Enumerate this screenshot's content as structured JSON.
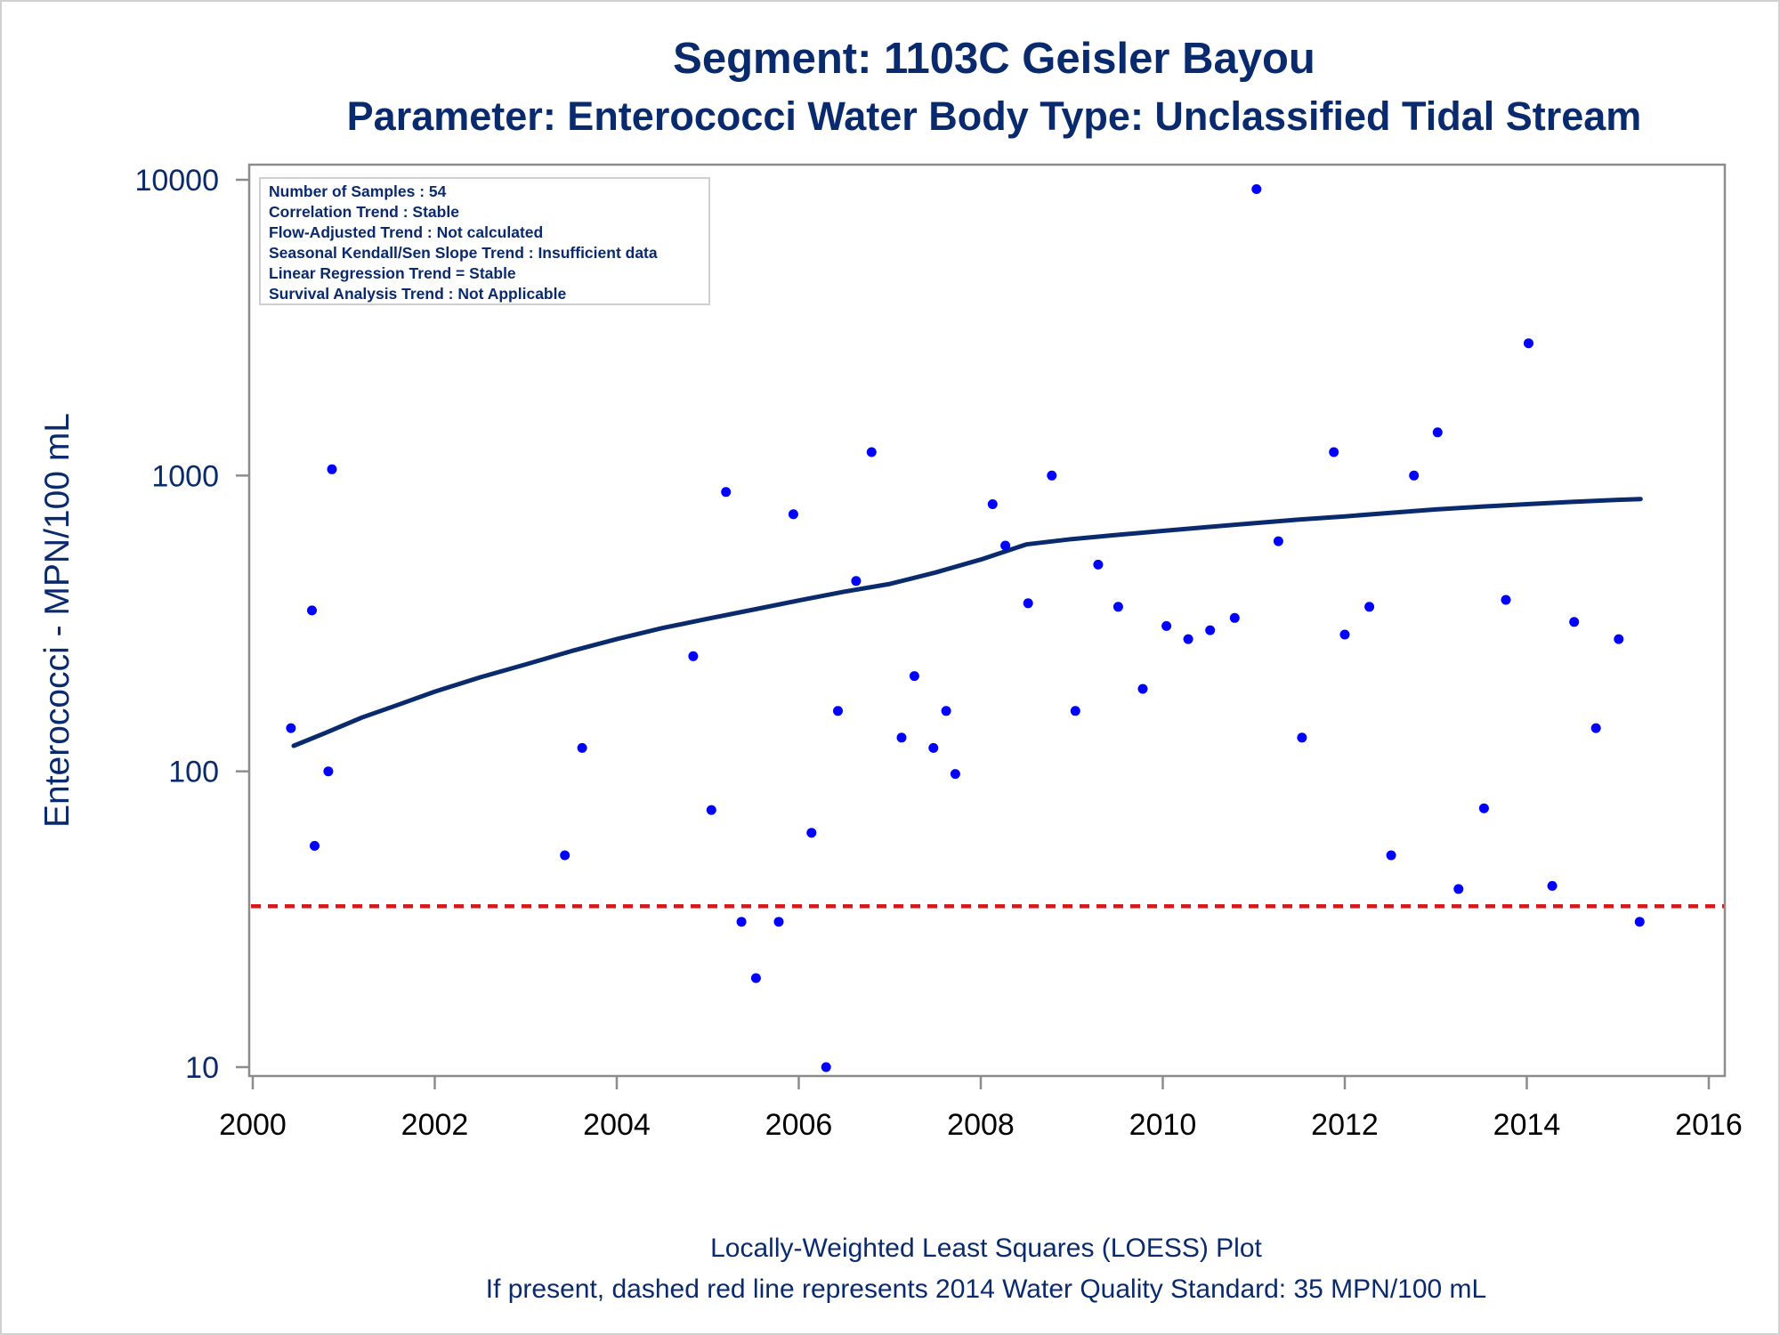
{
  "chart_data": {
    "type": "scatter",
    "title": "Segment: 1103C  Geisler Bayou",
    "subtitle": "Parameter: Enterococci   Water Body Type: Unclassified Tidal Stream",
    "ylabel": "Enterococci - MPN/100 mL",
    "xlabel": "",
    "yscale": "log",
    "ylim": [
      10,
      10000
    ],
    "xlim": [
      2000,
      2016
    ],
    "xticks": [
      "2000",
      "2002",
      "2004",
      "2006",
      "2008",
      "2010",
      "2012",
      "2014",
      "2016"
    ],
    "yticks": [
      "10",
      "100",
      "1000",
      "10000"
    ],
    "grid": false,
    "info_box": [
      "Number of Samples : 54",
      "Correlation Trend : Stable",
      "Flow-Adjusted Trend : Not calculated",
      "Seasonal Kendall/Sen Slope Trend : Insufficient data",
      "Linear Regression Trend = Stable",
      "Survival Analysis Trend : Not Applicable"
    ],
    "footnotes": [
      "Locally-Weighted Least Squares (LOESS) Plot",
      "If present, dashed red line represents 2014 Water Quality Standard: 35 MPN/100 mL"
    ],
    "standard_line": {
      "y": 35,
      "color": "#d7191c",
      "style": "dashed"
    },
    "points_color": "#0000ff",
    "loess_color": "#0a2a6e",
    "points": [
      {
        "x": 2000.42,
        "y": 140
      },
      {
        "x": 2000.65,
        "y": 350
      },
      {
        "x": 2000.68,
        "y": 56
      },
      {
        "x": 2000.83,
        "y": 100
      },
      {
        "x": 2000.87,
        "y": 1050
      },
      {
        "x": 2003.43,
        "y": 52
      },
      {
        "x": 2003.62,
        "y": 120
      },
      {
        "x": 2004.84,
        "y": 245
      },
      {
        "x": 2005.04,
        "y": 74
      },
      {
        "x": 2005.2,
        "y": 880
      },
      {
        "x": 2005.37,
        "y": 31
      },
      {
        "x": 2005.53,
        "y": 20
      },
      {
        "x": 2005.78,
        "y": 31
      },
      {
        "x": 2005.94,
        "y": 740
      },
      {
        "x": 2006.14,
        "y": 62
      },
      {
        "x": 2006.3,
        "y": 10
      },
      {
        "x": 2006.43,
        "y": 160
      },
      {
        "x": 2006.63,
        "y": 440
      },
      {
        "x": 2006.8,
        "y": 1200
      },
      {
        "x": 2007.13,
        "y": 130
      },
      {
        "x": 2007.27,
        "y": 210
      },
      {
        "x": 2007.48,
        "y": 120
      },
      {
        "x": 2007.62,
        "y": 160
      },
      {
        "x": 2007.72,
        "y": 98
      },
      {
        "x": 2008.13,
        "y": 800
      },
      {
        "x": 2008.27,
        "y": 580
      },
      {
        "x": 2008.52,
        "y": 370
      },
      {
        "x": 2008.78,
        "y": 1000
      },
      {
        "x": 2009.04,
        "y": 160
      },
      {
        "x": 2009.29,
        "y": 500
      },
      {
        "x": 2009.51,
        "y": 360
      },
      {
        "x": 2009.78,
        "y": 190
      },
      {
        "x": 2010.04,
        "y": 310
      },
      {
        "x": 2010.28,
        "y": 280
      },
      {
        "x": 2010.52,
        "y": 300
      },
      {
        "x": 2010.79,
        "y": 330
      },
      {
        "x": 2011.03,
        "y": 9300
      },
      {
        "x": 2011.27,
        "y": 600
      },
      {
        "x": 2011.53,
        "y": 130
      },
      {
        "x": 2011.88,
        "y": 1200
      },
      {
        "x": 2012.0,
        "y": 290
      },
      {
        "x": 2012.27,
        "y": 360
      },
      {
        "x": 2012.51,
        "y": 52
      },
      {
        "x": 2012.76,
        "y": 1000
      },
      {
        "x": 2013.02,
        "y": 1400
      },
      {
        "x": 2013.25,
        "y": 40
      },
      {
        "x": 2013.53,
        "y": 75
      },
      {
        "x": 2013.77,
        "y": 380
      },
      {
        "x": 2014.02,
        "y": 2800
      },
      {
        "x": 2014.28,
        "y": 41
      },
      {
        "x": 2014.52,
        "y": 320
      },
      {
        "x": 2014.76,
        "y": 140
      },
      {
        "x": 2015.01,
        "y": 280
      },
      {
        "x": 2015.24,
        "y": 31
      }
    ],
    "loess": [
      {
        "x": 2000.45,
        "y": 122
      },
      {
        "x": 2000.8,
        "y": 135
      },
      {
        "x": 2001.2,
        "y": 152
      },
      {
        "x": 2001.6,
        "y": 168
      },
      {
        "x": 2002.0,
        "y": 186
      },
      {
        "x": 2002.5,
        "y": 208
      },
      {
        "x": 2003.0,
        "y": 230
      },
      {
        "x": 2003.5,
        "y": 255
      },
      {
        "x": 2004.0,
        "y": 280
      },
      {
        "x": 2004.5,
        "y": 305
      },
      {
        "x": 2005.0,
        "y": 328
      },
      {
        "x": 2005.5,
        "y": 352
      },
      {
        "x": 2006.0,
        "y": 378
      },
      {
        "x": 2006.5,
        "y": 405
      },
      {
        "x": 2007.0,
        "y": 430
      },
      {
        "x": 2007.5,
        "y": 470
      },
      {
        "x": 2008.0,
        "y": 520
      },
      {
        "x": 2008.5,
        "y": 585
      },
      {
        "x": 2009.0,
        "y": 610
      },
      {
        "x": 2009.5,
        "y": 630
      },
      {
        "x": 2010.0,
        "y": 650
      },
      {
        "x": 2010.5,
        "y": 670
      },
      {
        "x": 2011.0,
        "y": 690
      },
      {
        "x": 2011.5,
        "y": 710
      },
      {
        "x": 2012.0,
        "y": 728
      },
      {
        "x": 2012.5,
        "y": 748
      },
      {
        "x": 2013.0,
        "y": 768
      },
      {
        "x": 2013.5,
        "y": 785
      },
      {
        "x": 2014.0,
        "y": 800
      },
      {
        "x": 2014.5,
        "y": 815
      },
      {
        "x": 2015.0,
        "y": 828
      },
      {
        "x": 2015.25,
        "y": 833
      }
    ]
  }
}
